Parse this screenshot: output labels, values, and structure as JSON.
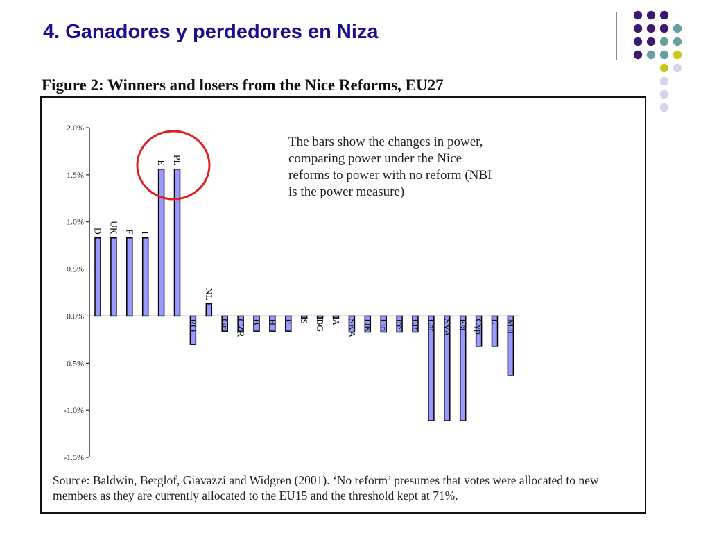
{
  "slide": {
    "title": "4. Ganadores y perdedores en Niza"
  },
  "figure": {
    "caption": "Figure 2: Winners and losers from the Nice Reforms, EU27",
    "annotation": "The bars show the changes in power, comparing power under the Nice reforms to power with no reform (NBI is the power measure)",
    "source": "Source: Baldwin, Berglof, Giavazzi and Widgren (2001). ‘No reform’ presumes that votes were allocated to new members as they are currently allocated to the EU15 and the threshold kept at 71%."
  },
  "colors": {
    "title": "#1a0f8a",
    "bar_fill": "#9999ff",
    "bar_stroke": "#000000",
    "highlight_circle": "#e02020",
    "dot_purple": "#3d1a6e",
    "dot_teal": "#6a9fa0",
    "dot_yellow": "#c8c81e",
    "dot_lavender": "#d4d4ea"
  },
  "decor": {
    "dots_icon": "dot-grid-icon",
    "highlight_icon": "red-circle-highlight-icon"
  },
  "chart_data": {
    "type": "bar",
    "title": "",
    "xlabel": "",
    "ylabel": "",
    "ylim": [
      -1.5,
      2.0
    ],
    "yticks": [
      "2.0%",
      "1.5%",
      "1.0%",
      "0.5%",
      "0.0%",
      "-0.5%",
      "-1.0%",
      "-1.5%"
    ],
    "ytick_values": [
      2.0,
      1.5,
      1.0,
      0.5,
      0.0,
      -0.5,
      -1.0,
      -1.5
    ],
    "grid": false,
    "legend": "none",
    "highlighted_categories": [
      "E",
      "PL"
    ],
    "categories": [
      "D",
      "UK",
      "F",
      "I",
      "E",
      "PL",
      "RO",
      "NL",
      "Gr",
      "CZR",
      "B",
      "H",
      "P",
      "S",
      "BG",
      "A",
      "SKA",
      "DK",
      "Fin",
      "Ire",
      "Lit",
      "Lat",
      "SVA",
      "Est",
      "Cyp",
      "L",
      "Mal"
    ],
    "values": [
      0.83,
      0.83,
      0.83,
      0.83,
      1.56,
      1.56,
      -0.3,
      0.13,
      -0.16,
      -0.16,
      -0.16,
      -0.16,
      -0.16,
      -0.02,
      -0.02,
      -0.02,
      -0.17,
      -0.17,
      -0.17,
      -0.17,
      -0.17,
      -1.11,
      -1.11,
      -1.11,
      -0.32,
      -0.32,
      -0.63
    ]
  }
}
